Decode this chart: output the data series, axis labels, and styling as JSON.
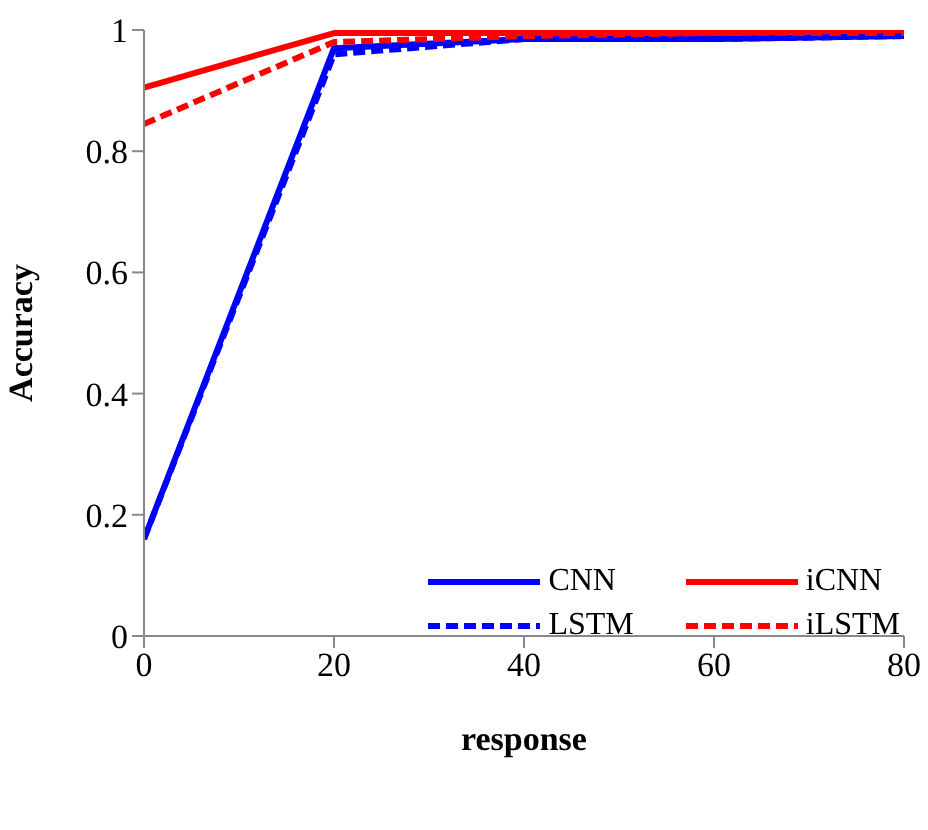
{
  "chart_data": {
    "type": "line",
    "xlabel": "response",
    "ylabel": "Accuracy",
    "x": [
      0,
      20,
      40,
      60,
      80
    ],
    "series": [
      {
        "name": "CNN",
        "color": "#0000ff",
        "line_style": "solid",
        "values": [
          0.16,
          0.97,
          0.985,
          0.985,
          0.99
        ]
      },
      {
        "name": "iCNN",
        "color": "#ff0000",
        "line_style": "solid",
        "values": [
          0.905,
          0.995,
          0.995,
          0.995,
          1.0
        ]
      },
      {
        "name": "LSTM",
        "color": "#0000ff",
        "line_style": "dashed",
        "values": [
          0.16,
          0.96,
          0.985,
          0.985,
          0.99
        ]
      },
      {
        "name": "iLSTM",
        "color": "#ff0000",
        "line_style": "dashed",
        "values": [
          0.845,
          0.98,
          0.99,
          0.995,
          0.995
        ]
      }
    ],
    "xlim": [
      0,
      80
    ],
    "xticks": [
      0,
      20,
      40,
      60,
      80
    ],
    "ylim": [
      0,
      1
    ],
    "yticks": [
      0,
      0.2,
      0.4,
      0.6,
      0.8,
      1
    ],
    "grid": false,
    "legend": "bottom right",
    "marker": "none"
  }
}
